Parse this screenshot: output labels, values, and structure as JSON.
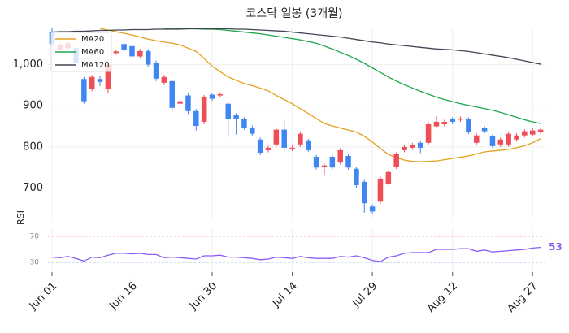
{
  "chart_data": [
    {
      "type": "candlestick",
      "title": "코스닥 일봉 (3개월)",
      "categories": [
        "Jun 01",
        null,
        null,
        null,
        null,
        null,
        null,
        null,
        null,
        null,
        "Jun 16",
        null,
        null,
        null,
        null,
        null,
        null,
        null,
        null,
        null,
        "Jun 30",
        null,
        null,
        null,
        null,
        null,
        null,
        null,
        null,
        null,
        "Jul 14",
        null,
        null,
        null,
        null,
        null,
        null,
        null,
        null,
        null,
        "Jul 29",
        null,
        null,
        null,
        null,
        null,
        null,
        null,
        null,
        null,
        "Aug 12",
        null,
        null,
        null,
        null,
        null,
        null,
        null,
        null,
        null,
        "Aug 27",
        null
      ],
      "open": [
        1079,
        1035,
        1040,
        1040,
        965,
        940,
        965,
        940,
        1028,
        1050,
        1045,
        1020,
        1033,
        1004,
        956,
        960,
        905,
        925,
        887,
        861,
        927,
        925,
        905,
        877,
        867,
        847,
        818,
        792,
        806,
        842,
        795,
        806,
        816,
        776,
        752,
        776,
        762,
        778,
        747,
        715,
        655,
        667,
        711,
        751,
        792,
        798,
        810,
        810,
        850,
        855,
        867,
        866,
        867,
        810,
        846,
        826,
        806,
        806,
        818,
        828,
        830,
        836
      ],
      "high": [
        1088,
        1052,
        1058,
        1045,
        970,
        975,
        972,
        1005,
        1036,
        1055,
        1050,
        1038,
        1038,
        1010,
        975,
        965,
        916,
        930,
        892,
        926,
        932,
        933,
        910,
        882,
        872,
        852,
        823,
        803,
        848,
        865,
        803,
        838,
        820,
        781,
        760,
        781,
        797,
        783,
        752,
        720,
        660,
        728,
        742,
        787,
        805,
        810,
        815,
        860,
        875,
        866,
        872,
        874,
        872,
        833,
        851,
        831,
        823,
        837,
        833,
        843,
        845,
        847
      ],
      "low": [
        1045,
        1030,
        1036,
        998,
        905,
        935,
        948,
        930,
        1024,
        1030,
        1015,
        1015,
        995,
        960,
        950,
        890,
        900,
        880,
        840,
        855,
        912,
        920,
        825,
        830,
        842,
        826,
        780,
        787,
        800,
        792,
        790,
        800,
        788,
        745,
        730,
        745,
        757,
        745,
        700,
        640,
        638,
        662,
        708,
        746,
        787,
        793,
        785,
        805,
        845,
        850,
        855,
        861,
        831,
        805,
        833,
        797,
        800,
        800,
        813,
        823,
        825,
        831
      ],
      "close": [
        1050,
        1048,
        1052,
        1004,
        911,
        970,
        958,
        1000,
        1032,
        1035,
        1020,
        1033,
        1000,
        966,
        970,
        895,
        911,
        887,
        851,
        921,
        917,
        928,
        867,
        867,
        847,
        832,
        786,
        798,
        842,
        798,
        798,
        832,
        792,
        750,
        755,
        750,
        792,
        750,
        707,
        663,
        643,
        723,
        739,
        782,
        800,
        805,
        798,
        855,
        861,
        861,
        861,
        869,
        836,
        828,
        838,
        802,
        818,
        832,
        828,
        838,
        840,
        842
      ],
      "up_color": "#ef4e57",
      "down_color": "#3f86f2",
      "series": [
        {
          "name": "MA20",
          "color": "#e4a020",
          "values": [
            null,
            null,
            null,
            null,
            null,
            null,
            1088,
            1084,
            1080,
            1076,
            1072,
            1067,
            1062,
            1058,
            1055,
            1052,
            1048,
            1040,
            1032,
            1015,
            996,
            983,
            970,
            962,
            954,
            949,
            943,
            936,
            925,
            915,
            905,
            893,
            881,
            869,
            857,
            851,
            846,
            841,
            836,
            826,
            812,
            796,
            782,
            774,
            768,
            765,
            764,
            765,
            766,
            769,
            772,
            775,
            778,
            783,
            788,
            790,
            792,
            794,
            798,
            803,
            810,
            820
          ]
        },
        {
          "name": "MA60",
          "color": "#1fa64a",
          "values": [
            null,
            null,
            null,
            null,
            null,
            null,
            null,
            null,
            null,
            null,
            null,
            null,
            null,
            null,
            1087,
            1087,
            1087,
            1087,
            1087,
            1086,
            1086,
            1085,
            1083,
            1081,
            1079,
            1077,
            1075,
            1072,
            1069,
            1066,
            1063,
            1060,
            1056,
            1052,
            1045,
            1038,
            1030,
            1022,
            1013,
            1003,
            992,
            981,
            970,
            960,
            951,
            943,
            935,
            928,
            921,
            915,
            910,
            905,
            901,
            897,
            893,
            889,
            884,
            878,
            872,
            866,
            861,
            857
          ]
        },
        {
          "name": "MA120",
          "color": "#3e4654",
          "values": [
            1079,
            1080,
            1080,
            1081,
            1081,
            1082,
            1083,
            1083,
            1084,
            1084,
            1085,
            1085,
            1085,
            1086,
            1086,
            1086,
            1086,
            1087,
            1087,
            1087,
            1087,
            1087,
            1087,
            1086,
            1086,
            1085,
            1084,
            1083,
            1082,
            1081,
            1079,
            1077,
            1075,
            1073,
            1071,
            1069,
            1067,
            1064,
            1061,
            1058,
            1055,
            1053,
            1050,
            1048,
            1046,
            1044,
            1042,
            1040,
            1038,
            1037,
            1036,
            1034,
            1032,
            1029,
            1026,
            1023,
            1020,
            1017,
            1013,
            1009,
            1005,
            1001
          ]
        }
      ],
      "ylim": [
        628,
        1088
      ],
      "yticks": [
        700,
        800,
        900,
        {
          "value": 1000,
          "label": "1,000"
        }
      ],
      "grid": true,
      "legend": "upper left"
    },
    {
      "type": "line",
      "ylabel": "RSI",
      "color": "#8b5cf6",
      "values": [
        38,
        37,
        39,
        36,
        32,
        38,
        37,
        41,
        44,
        44,
        43,
        44,
        42,
        42,
        37,
        38,
        37,
        36,
        35,
        40,
        40,
        41,
        38,
        38,
        37,
        36,
        34,
        35,
        38,
        37,
        36,
        39,
        37,
        36,
        36,
        36,
        39,
        38,
        40,
        37,
        33,
        31,
        38,
        40,
        44,
        45,
        45,
        45,
        50,
        50,
        50,
        51,
        51,
        47,
        49,
        46,
        47,
        48,
        49,
        50,
        52,
        53
      ],
      "ylim": [
        15,
        85
      ],
      "yticks": [
        30,
        70
      ],
      "tick_colors": [
        "#8fb0e8",
        "#f09a9a"
      ]
    }
  ]
}
